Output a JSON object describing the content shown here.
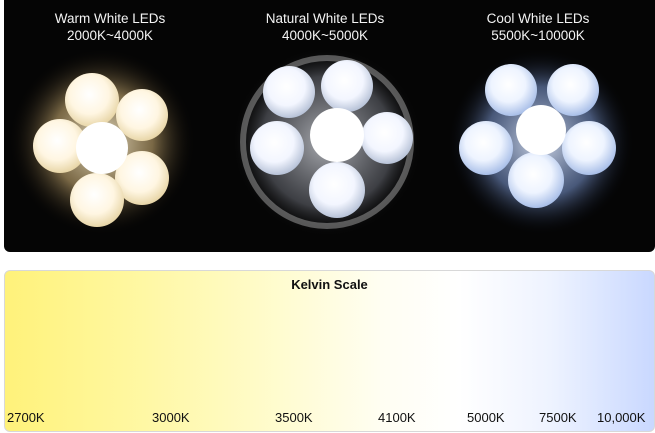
{
  "photos": [
    {
      "title": "Warm White LEDs",
      "range": "2000K~4000K",
      "glow": "#fff3c8",
      "core": "#fffaf0"
    },
    {
      "title": "Natural White LEDs",
      "range": "4000K~5000K",
      "glow": "#eef4ff",
      "core": "#ffffff"
    },
    {
      "title": "Cool White LEDs",
      "range": "5500K~10000K",
      "glow": "#d8e6ff",
      "core": "#f6faff"
    }
  ],
  "kelvin_scale": {
    "title": "Kelvin Scale",
    "ticks": [
      "2700K",
      "3000K",
      "3500K",
      "4100K",
      "5000K",
      "7500K",
      "10,000K"
    ]
  }
}
